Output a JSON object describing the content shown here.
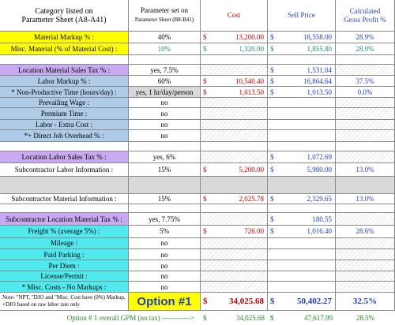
{
  "header": {
    "col1_line1": "Category listed on",
    "col1_line2": "Parameter Sheet (A8-A41)",
    "col2_line1": "Parameter set on",
    "col2_line2": "Parameter Sheet (B8-B41)",
    "col3": "Cost",
    "col4": "Sell Price",
    "col5_line1": "Calculated",
    "col5_line2": "Gross Profit %"
  },
  "currency_symbol": "$",
  "rows": [
    {
      "label": "Material Markup % :",
      "param": "40%",
      "cost": "13,200.00",
      "sell": "18,558.00",
      "gp": "28.9%"
    },
    {
      "label": "Misc. Material (% of Material Cost) :",
      "param": "10%",
      "cost": "1,320.00",
      "sell": "1,855.80",
      "gp": "28.9%"
    },
    {
      "label": "",
      "param": "",
      "cost": "",
      "sell": "",
      "gp": ""
    },
    {
      "label": "Location Material Sales Tax % :",
      "param": "yes, 7.5%",
      "cost": "",
      "sell": "1,531.04",
      "gp": ""
    },
    {
      "label": "Labor Markup % :",
      "param": "60%",
      "cost": "10,540.40",
      "sell": "16,864.64",
      "gp": "37.5%"
    },
    {
      "label": "* Non-Productive Time (hours/day) :",
      "param": "yes, 1 hr/day/person",
      "cost": "1,013.50",
      "sell": "1,013.50",
      "gp": "0.0%"
    },
    {
      "label": "Prevailing Wage :",
      "param": "no",
      "cost": "",
      "sell": "",
      "gp": ""
    },
    {
      "label": "Premium Time :",
      "param": "no",
      "cost": "",
      "sell": "",
      "gp": ""
    },
    {
      "label": "Labor - Extra Cost :",
      "param": "no",
      "cost": "",
      "sell": "",
      "gp": ""
    },
    {
      "label": "*+ Direct Job Overhead % :",
      "param": "no",
      "cost": "",
      "sell": "",
      "gp": ""
    },
    {
      "label": "",
      "param": "",
      "cost": "",
      "sell": "",
      "gp": ""
    },
    {
      "label": "Location Labor Sales Tax % :",
      "param": "yes, 6%",
      "cost": "",
      "sell": "1,072.69",
      "gp": ""
    },
    {
      "label": "Subcontractor Labor Information :",
      "param": "15%",
      "cost": "5,200.00",
      "sell": "5,980.00",
      "gp": "13.0%"
    },
    {
      "label": "",
      "param": "",
      "cost": "",
      "sell": "",
      "gp": ""
    },
    {
      "label": "Subcontractor Material Information :",
      "param": "15%",
      "cost": "2,025.78",
      "sell": "2,329.65",
      "gp": "13.0%"
    },
    {
      "label": "",
      "param": "",
      "cost": "",
      "sell": "",
      "gp": ""
    },
    {
      "label": "Subcontractor Location Material Tax % :",
      "param": "yes, 7.75%",
      "cost": "",
      "sell": "180.55",
      "gp": ""
    },
    {
      "label": "Freight % (average 5%) :",
      "param": "5%",
      "cost": "726.00",
      "sell": "1,016.40",
      "gp": "28.6%"
    },
    {
      "label": "Mileage :",
      "param": "no",
      "cost": "",
      "sell": "",
      "gp": ""
    },
    {
      "label": "Paid Parking :",
      "param": "no",
      "cost": "",
      "sell": "",
      "gp": ""
    },
    {
      "label": "Per Diem :",
      "param": "no",
      "cost": "",
      "sell": "",
      "gp": ""
    },
    {
      "label": "License/Permit :",
      "param": "no",
      "cost": "",
      "sell": "",
      "gp": ""
    },
    {
      "label": "* Misc. Costs - No Markups :",
      "param": "no",
      "cost": "",
      "sell": "",
      "gp": ""
    }
  ],
  "summary": {
    "note": "Note- \"NPT, \"DJO and \"Misc. Cost have (0%) Markup, +DJO based on raw labor rate only",
    "option_label": "Option #1",
    "cost": "34,025.68",
    "sell": "50,402.27",
    "gp": "32.5%"
  },
  "footer": {
    "label": "Option # 1 overall GPM (no tax) ------------>",
    "cost": "34,025.68",
    "sell": "47,617.99",
    "gp": "28.5%"
  },
  "colors": {
    "yellow": "#ffff00",
    "lavender": "#c9a9f2",
    "light_blue": "#aecbe8",
    "cyan": "#4fe9ee",
    "cost_red": "#c00000",
    "sell_blue": "#1f3fbf",
    "footer_green": "#228b22"
  }
}
